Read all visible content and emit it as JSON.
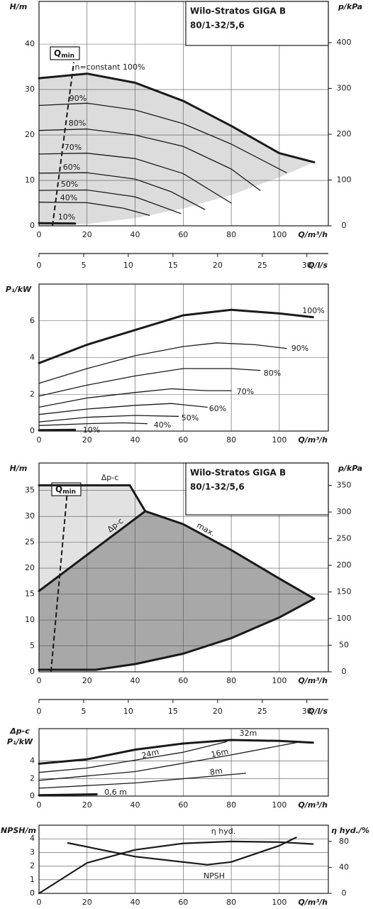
{
  "chart_data": [
    {
      "type": "line",
      "title": "Wilo-Stratos GIGA B",
      "subtitle": "80/1-32/5,6",
      "x_label": "Q/m³/h",
      "y_label": "H/m",
      "y2_label": "p/kPa",
      "xlim": [
        0,
        120.4
      ],
      "xticks": [
        0,
        20,
        40,
        60,
        80,
        100
      ],
      "ylim": [
        0,
        49.4
      ],
      "yticks": [
        0,
        10,
        20,
        30,
        40
      ],
      "y2lim": [
        0,
        490
      ],
      "y2ticks": [
        0,
        100,
        200,
        300,
        400
      ],
      "x2_label": "Q/l/s",
      "x2lim": [
        0,
        32.4
      ],
      "x2ticks": [
        0,
        5,
        10,
        15,
        20,
        25,
        30
      ],
      "grid": true,
      "qmin": {
        "label": "Q",
        "label_sub": "min",
        "x": [
          5.6,
          14.5
        ],
        "values": [
          0,
          36
        ]
      },
      "areas": [
        {
          "color": "#dcdcdc",
          "x": [
            0,
            20,
            40,
            60,
            80,
            100,
            114.5,
            100,
            80,
            60,
            40,
            20,
            0
          ],
          "values": [
            32.5,
            33.5,
            31.5,
            27.5,
            22,
            16,
            14,
            10.7,
            6.8,
            3.8,
            1.7,
            0.4,
            0
          ]
        }
      ],
      "series": [
        {
          "name": "n=constant 100%",
          "color": "#1a1a1a",
          "line_width": 3,
          "x": [
            0,
            20,
            40,
            60,
            80,
            100,
            114.5
          ],
          "values": [
            32.5,
            33.5,
            31.5,
            27.5,
            22,
            16,
            14
          ]
        },
        {
          "name": "90%",
          "color": "#1a1a1a",
          "line_width": 1.3,
          "x": [
            0,
            20,
            40,
            60,
            80,
            103
          ],
          "values": [
            26.5,
            27,
            25.5,
            22.5,
            18,
            11.7
          ]
        },
        {
          "name": "80%",
          "color": "#1a1a1a",
          "line_width": 1.3,
          "x": [
            0,
            20,
            40,
            60,
            80,
            92
          ],
          "values": [
            21,
            21.3,
            20,
            17.5,
            12.5,
            7.8
          ]
        },
        {
          "name": "70%",
          "color": "#1a1a1a",
          "line_width": 1.3,
          "x": [
            0,
            20,
            40,
            60,
            80
          ],
          "values": [
            15.8,
            16,
            14.8,
            11.5,
            5
          ]
        },
        {
          "name": "60%",
          "color": "#1a1a1a",
          "line_width": 1.3,
          "x": [
            0,
            20,
            40,
            55,
            69
          ],
          "values": [
            11.6,
            11.7,
            10.3,
            7.5,
            3.6
          ]
        },
        {
          "name": "50%",
          "color": "#1a1a1a",
          "line_width": 1.3,
          "x": [
            0,
            20,
            40,
            59
          ],
          "values": [
            7.8,
            7.9,
            6.4,
            2.7
          ]
        },
        {
          "name": "40%",
          "color": "#1a1a1a",
          "line_width": 1.3,
          "x": [
            0,
            20,
            35,
            46
          ],
          "values": [
            5.2,
            5.1,
            3.9,
            2.3
          ]
        },
        {
          "name": "10%",
          "color": "#1a1a1a",
          "line_width": 3,
          "x": [
            0,
            15
          ],
          "values": [
            0.6,
            0.5
          ]
        }
      ]
    },
    {
      "type": "line",
      "x_label": "Q/m³/h",
      "y_label": "P₁/kW",
      "xlim": [
        0,
        120.4
      ],
      "xticks": [
        0,
        20,
        40,
        60,
        80,
        100
      ],
      "ylim": [
        0,
        8
      ],
      "yticks": [
        0,
        2,
        4,
        6
      ],
      "grid": true,
      "series": [
        {
          "name": "100%",
          "color": "#1a1a1a",
          "line_width": 3,
          "x": [
            0,
            20,
            40,
            60,
            80,
            100,
            114
          ],
          "values": [
            3.7,
            4.7,
            5.5,
            6.3,
            6.6,
            6.4,
            6.2
          ]
        },
        {
          "name": "90%",
          "color": "#1a1a1a",
          "line_width": 1.3,
          "x": [
            0,
            20,
            40,
            60,
            74,
            90,
            103
          ],
          "values": [
            2.6,
            3.4,
            4.1,
            4.6,
            4.8,
            4.7,
            4.5
          ]
        },
        {
          "name": "80%",
          "color": "#1a1a1a",
          "line_width": 1.3,
          "x": [
            0,
            20,
            40,
            60,
            80,
            92
          ],
          "values": [
            1.9,
            2.5,
            3,
            3.4,
            3.4,
            3.3
          ]
        },
        {
          "name": "70%",
          "color": "#1a1a1a",
          "line_width": 1.3,
          "x": [
            0,
            20,
            40,
            55,
            70,
            80
          ],
          "values": [
            1.3,
            1.8,
            2.1,
            2.3,
            2.2,
            2.2
          ]
        },
        {
          "name": "60%",
          "color": "#1a1a1a",
          "line_width": 1.3,
          "x": [
            0,
            20,
            40,
            55,
            70
          ],
          "values": [
            0.9,
            1.2,
            1.4,
            1.5,
            1.3
          ]
        },
        {
          "name": "50%",
          "color": "#1a1a1a",
          "line_width": 1.3,
          "x": [
            0,
            20,
            40,
            58
          ],
          "values": [
            0.5,
            0.75,
            0.85,
            0.8
          ]
        },
        {
          "name": "40%",
          "color": "#1a1a1a",
          "line_width": 1.3,
          "x": [
            0,
            20,
            35,
            45
          ],
          "values": [
            0.3,
            0.4,
            0.45,
            0.4
          ]
        },
        {
          "name": "10%",
          "color": "#1a1a1a",
          "line_width": 3,
          "x": [
            0,
            15
          ],
          "values": [
            0.05,
            0.07
          ]
        }
      ]
    },
    {
      "type": "line",
      "title": "Wilo-Stratos GIGA B",
      "subtitle": "80/1-32/5,6",
      "x_label": "Q/m³/h",
      "y_label": "H/m",
      "y2_label": "p/kPa",
      "xlim": [
        0,
        120.4
      ],
      "xticks": [
        0,
        20,
        40,
        60,
        80,
        100
      ],
      "ylim": [
        0,
        40.3
      ],
      "yticks": [
        0,
        5,
        10,
        15,
        20,
        25,
        30,
        35
      ],
      "y2lim": [
        0,
        392
      ],
      "y2ticks": [
        0,
        50,
        100,
        150,
        200,
        250,
        300,
        350
      ],
      "x2_label": "Q/l/s",
      "x2lim": [
        0,
        32.4
      ],
      "x2ticks": [
        0,
        5,
        10,
        15,
        20,
        25,
        30
      ],
      "grid": true,
      "qmin": {
        "label": "Q",
        "label_sub": "min",
        "x": [
          5,
          12
        ],
        "values": [
          0,
          36
        ]
      },
      "areas": [
        {
          "color": "#e2e2e2",
          "x": [
            0,
            37.8,
            44.2,
            0
          ],
          "values": [
            36,
            36,
            31,
            15.6
          ]
        },
        {
          "color": "#a8a8a8",
          "x": [
            0,
            44.2,
            60,
            80,
            100,
            114.5,
            100,
            80,
            60,
            40,
            23.6,
            0
          ],
          "values": [
            15.6,
            31,
            28.5,
            23.5,
            18,
            14.1,
            10.5,
            6.5,
            3.5,
            1.5,
            0.4,
            0.4
          ]
        }
      ],
      "series": [
        {
          "name": "Δp-c",
          "color": "#1a1a1a",
          "line_width": 3,
          "x": [
            0,
            37.8,
            44.2
          ],
          "values": [
            36,
            36,
            31
          ]
        },
        {
          "name": "Δp-c",
          "color": "#1a1a1a",
          "line_width": 3,
          "x": [
            0,
            44.2
          ],
          "values": [
            15.6,
            31
          ]
        },
        {
          "name": "max.",
          "color": "#1a1a1a",
          "line_width": 3,
          "x": [
            44.2,
            60,
            80,
            100,
            114.5
          ],
          "values": [
            31,
            28.5,
            23.5,
            18,
            14.1
          ]
        },
        {
          "color": "#1a1a1a",
          "line_width": 3,
          "x": [
            0,
            23.6,
            40,
            60,
            80,
            100,
            114.5
          ],
          "values": [
            0.4,
            0.4,
            1.5,
            3.5,
            6.5,
            10.5,
            14.1
          ]
        }
      ]
    },
    {
      "type": "line",
      "x_label": "Q/m³/h",
      "y_label": [
        "Δp-c",
        "P₁/kW"
      ],
      "xlim": [
        0,
        120.4
      ],
      "xticks": [
        0,
        20,
        40,
        60,
        80,
        100
      ],
      "ylim": [
        0,
        7.7
      ],
      "yticks": [
        0,
        2,
        4
      ],
      "grid": true,
      "series": [
        {
          "name": "32m",
          "color": "#1a1a1a",
          "line_width": 3,
          "x": [
            0,
            20,
            40,
            60,
            80,
            100,
            114
          ],
          "values": [
            3.7,
            4.2,
            5.3,
            6,
            6.4,
            6.3,
            6.1
          ]
        },
        {
          "name": "24m",
          "color": "#1a1a1a",
          "line_width": 1.3,
          "x": [
            0,
            20,
            40,
            60,
            78
          ],
          "values": [
            2.7,
            3.2,
            4.1,
            5,
            6.2
          ]
        },
        {
          "name": "16m",
          "color": "#1a1a1a",
          "line_width": 1.3,
          "x": [
            0,
            40,
            80,
            107
          ],
          "values": [
            1.8,
            2.8,
            4.7,
            6.1
          ]
        },
        {
          "name": "8m",
          "color": "#1a1a1a",
          "line_width": 1.3,
          "x": [
            0,
            40,
            86
          ],
          "values": [
            0.9,
            1.5,
            2.6
          ]
        },
        {
          "name": "0,6 m",
          "color": "#1a1a1a",
          "line_width": 3,
          "x": [
            0,
            24
          ],
          "values": [
            0.1,
            0.2
          ]
        }
      ]
    },
    {
      "type": "line",
      "x_label": "Q/m³/h",
      "y_label": "NPSH/m",
      "y2_label": "η hyd./%",
      "xlim": [
        0,
        120.4
      ],
      "xticks": [
        0,
        20,
        40,
        60,
        80,
        100
      ],
      "ylim": [
        0,
        5
      ],
      "yticks": [
        0,
        1,
        2,
        3,
        4
      ],
      "y2lim": [
        0,
        105
      ],
      "y2ticks": [
        0,
        40,
        80
      ],
      "grid": true,
      "series": [
        {
          "name": "η hyd.",
          "color": "#1a1a1a",
          "line_width": 2.2,
          "axis": "y2",
          "x": [
            0,
            20,
            40,
            60,
            80,
            100,
            114
          ],
          "values": [
            0,
            47,
            67,
            77,
            80,
            79,
            76
          ]
        },
        {
          "name": "NPSH",
          "color": "#1a1a1a",
          "line_width": 2.2,
          "x": [
            12,
            40,
            70,
            80,
            100,
            107
          ],
          "values": [
            3.7,
            2.7,
            2.1,
            2.3,
            3.5,
            4.1
          ]
        }
      ]
    }
  ]
}
